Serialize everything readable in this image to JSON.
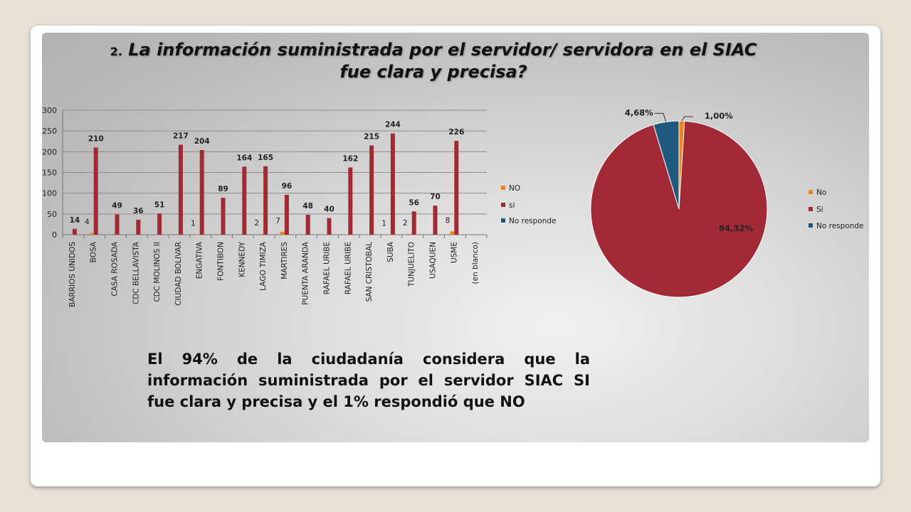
{
  "title": {
    "number": "2.",
    "line1": "La información suministrada por el servidor/ servidora en el SIAC",
    "line2": "fue clara y precisa?"
  },
  "summary": "El 94% de la ciudadanía considera que la información suministrada por el servidor SIAC SI fue clara y precisa y el 1% respondió que NO",
  "colors": {
    "no": "#f0841e",
    "si": "#a12a36",
    "no_responde": "#1f5a7e"
  },
  "chart_data": [
    {
      "type": "bar",
      "categories": [
        "BARRIOS UNIDOS",
        "BOSA",
        "CASA ROSADA",
        "CDC BELLAVISTA",
        "CDC MOLINOS II",
        "CIUDAD BOLIVAR",
        "ENGATIVA",
        "FONTIBON",
        "KENNEDY",
        "LAGO TIMIZA",
        "MARTIRES",
        "PUENTA ARANDA",
        "RAFAEL URIBE",
        "RAFAEL URIBE",
        "SAN CRISTOBAL",
        "SUBA",
        "TUNJUELITO",
        "USAQUEN",
        "USME",
        "(en blanco)"
      ],
      "series": [
        {
          "name": "NO",
          "values": [
            null,
            4,
            null,
            null,
            null,
            null,
            1,
            null,
            null,
            2,
            7,
            null,
            null,
            null,
            null,
            1,
            2,
            null,
            8,
            null
          ]
        },
        {
          "name": "si",
          "values": [
            14,
            210,
            49,
            36,
            51,
            217,
            204,
            89,
            164,
            165,
            96,
            48,
            40,
            162,
            215,
            244,
            56,
            70,
            226,
            null
          ]
        },
        {
          "name": "No responde",
          "values": [
            null,
            null,
            null,
            null,
            null,
            null,
            null,
            null,
            null,
            null,
            null,
            null,
            null,
            null,
            null,
            null,
            null,
            null,
            null,
            null
          ]
        }
      ],
      "yticks": [
        "0",
        "50",
        "100",
        "150",
        "200",
        "250",
        "300"
      ],
      "ylim": [
        0,
        300
      ],
      "grid": true,
      "legend": "right"
    },
    {
      "type": "pie",
      "labels": [
        "No",
        "Si",
        "No responde"
      ],
      "values": [
        1.0,
        94.32,
        4.68
      ],
      "data_labels": [
        "1,00%",
        "94,32%",
        "4,68%"
      ],
      "legend": "right"
    }
  ]
}
